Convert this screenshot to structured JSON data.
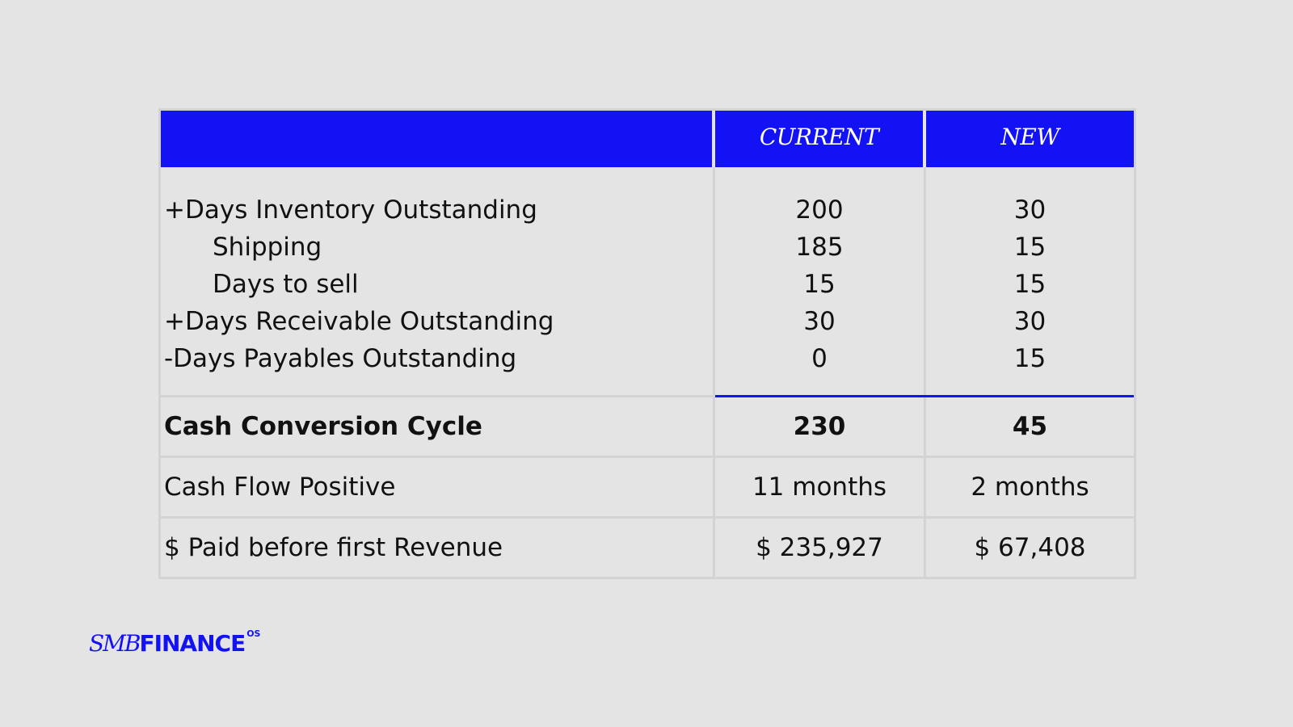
{
  "table": {
    "header": {
      "col1": "",
      "col2": "CURRENT",
      "col3": "NEW"
    },
    "detail_rows": [
      {
        "label": "+Days Inventory Outstanding",
        "current": "200",
        "new": "30",
        "indent": false
      },
      {
        "label": "Shipping",
        "current": "185",
        "new": "15",
        "indent": true
      },
      {
        "label": "Days to sell",
        "current": "15",
        "new": "15",
        "indent": true
      },
      {
        "label": "+Days Receivable Outstanding",
        "current": "30",
        "new": "30",
        "indent": false
      },
      {
        "label": "-Days Payables Outstanding",
        "current": "0",
        "new": "15",
        "indent": false
      }
    ],
    "ccc": {
      "label": "Cash Conversion Cycle",
      "current": "230",
      "new": "45"
    },
    "cfp": {
      "label": "Cash Flow Positive",
      "current": "11 months",
      "new": "2 months"
    },
    "paid": {
      "label": "$ Paid before first Revenue",
      "current": "$ 235,927",
      "new": "$ 67,408"
    }
  },
  "logo": {
    "smb": "SMB",
    "finance": "FINANCE",
    "os": "OS"
  },
  "colors": {
    "accent": "#1212f5",
    "background": "#e4e4e4",
    "grid": "#d3d3d3"
  }
}
